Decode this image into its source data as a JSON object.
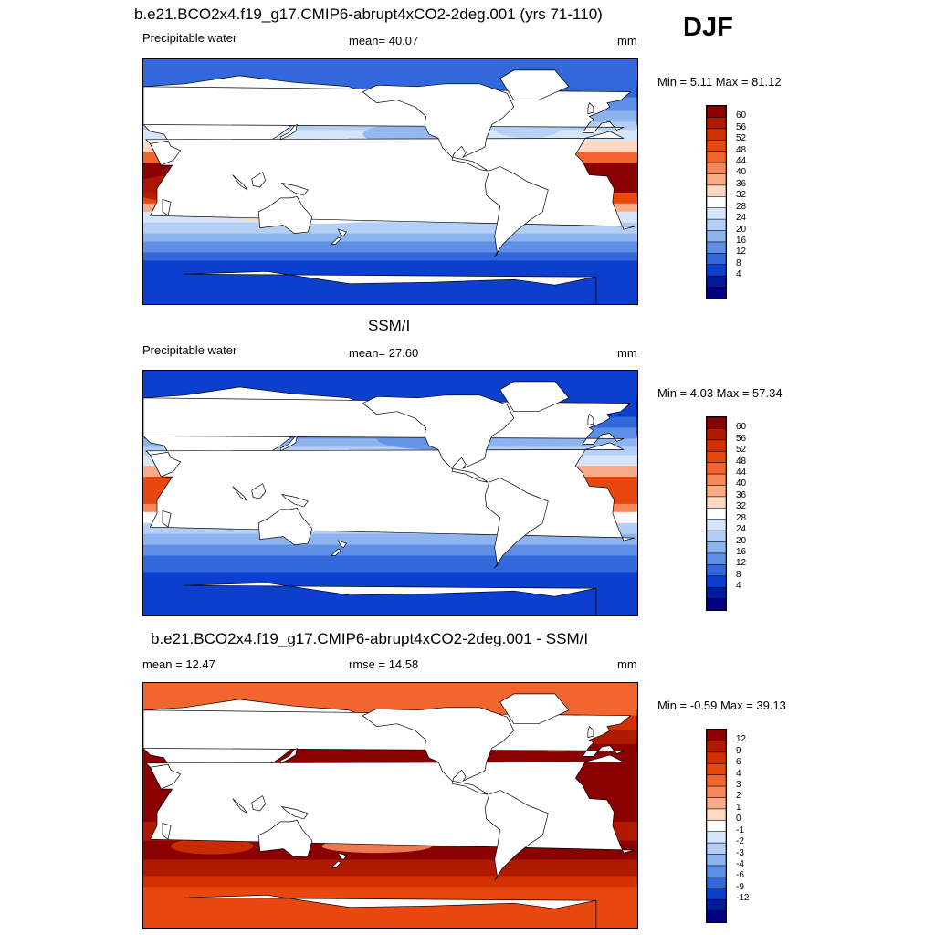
{
  "season": "DJF",
  "panels": [
    {
      "title": "b.e21.BCO2x4.f19_g17.CMIP6-abrupt4xCO2-2deg.001 (yrs 71-110)",
      "left_label": "Precipitable water",
      "center_label": "mean=  40.07",
      "right_label": "mm",
      "minmax": "Min =   5.11 Max =  81.12",
      "scale": "full",
      "colorbar_ticks": [
        "60",
        "56",
        "52",
        "48",
        "44",
        "40",
        "36",
        "32",
        "28",
        "24",
        "20",
        "16",
        "12",
        "8",
        "4"
      ]
    },
    {
      "title": "SSM/I",
      "left_label": "Precipitable water",
      "center_label": "mean=  27.60",
      "right_label": "mm",
      "minmax": "Min =   4.03 Max =  57.34",
      "scale": "full",
      "colorbar_ticks": [
        "60",
        "56",
        "52",
        "48",
        "44",
        "40",
        "36",
        "32",
        "28",
        "24",
        "20",
        "16",
        "12",
        "8",
        "4"
      ]
    },
    {
      "title": "b.e21.BCO2x4.f19_g17.CMIP6-abrupt4xCO2-2deg.001 - SSM/I",
      "left_label": "mean =  12.47",
      "center_label": "rmse =  14.58",
      "right_label": "mm",
      "minmax": "Min =  -0.59 Max =  39.13",
      "scale": "diff",
      "colorbar_ticks": [
        "12",
        "9",
        "6",
        "4",
        "3",
        "2",
        "1",
        "0",
        "-1",
        "-2",
        "-3",
        "-4",
        "-6",
        "-9",
        "-12"
      ]
    }
  ],
  "colors": {
    "palette_16": [
      "#8b0000",
      "#b01a00",
      "#d23000",
      "#e8470f",
      "#f2652e",
      "#f6875a",
      "#f8ab86",
      "#fcd9c0",
      "#ffffff",
      "#d6e6fa",
      "#b4cff5",
      "#8db4ef",
      "#5f8fe6",
      "#3268dc",
      "#0d3fcf",
      "#001a9c",
      "#000080"
    ],
    "land": "#ffffff",
    "coast": "#000000"
  }
}
